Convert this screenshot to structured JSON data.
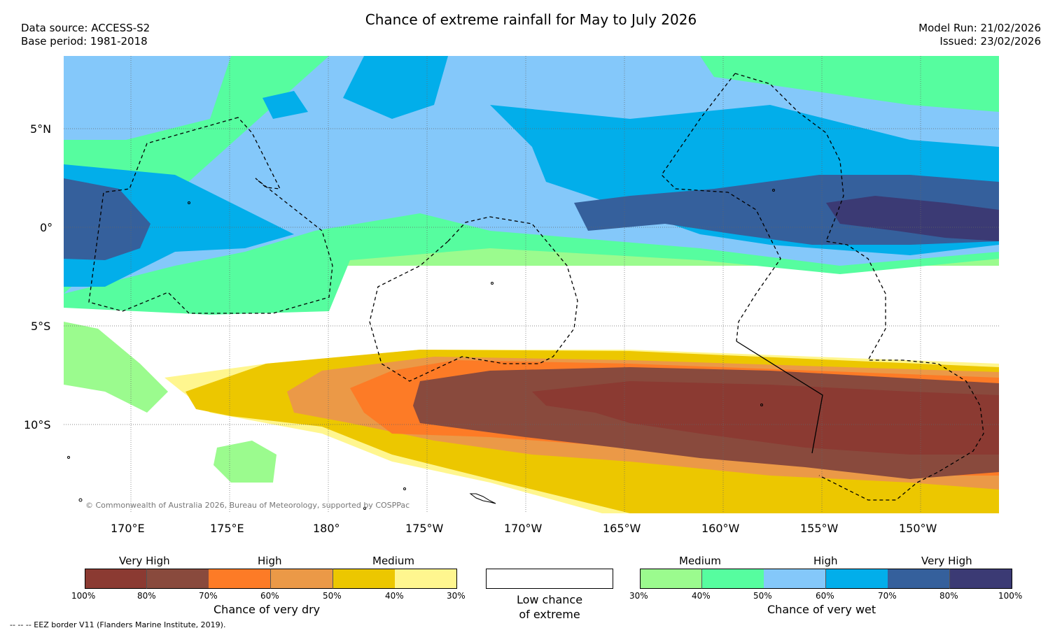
{
  "title": "Chance of extreme rainfall for May to July 2026",
  "header_left": {
    "data_source": "Data source: ACCESS-S2",
    "base_period": "Base period: 1981-2018"
  },
  "header_right": {
    "model_run": "Model Run: 21/02/2026",
    "issued": "Issued: 23/02/2026"
  },
  "map": {
    "lon_labels": [
      "170°E",
      "175°E",
      "180°",
      "175°W",
      "170°W",
      "165°W",
      "160°W",
      "155°W",
      "150°W"
    ],
    "lat_labels": [
      "5°N",
      "0°",
      "5°S",
      "10°S"
    ],
    "copyright": "© Commonwealth of Australia 2026, Bureau of Meteorology, supported by COSPPac"
  },
  "legend_dry": {
    "categories": [
      "Very High",
      "High",
      "Medium"
    ],
    "ticks": [
      "100%",
      "80%",
      "70%",
      "60%",
      "50%",
      "40%",
      "30%"
    ],
    "title": "Chance of very dry",
    "colors": [
      "#8b3a32",
      "#894a3d",
      "#fd7b26",
      "#eb9947",
      "#ecc700",
      "#fff68f"
    ]
  },
  "legend_none": {
    "caption_line1": "Low chance",
    "caption_line2": "of extreme"
  },
  "legend_wet": {
    "categories": [
      "Medium",
      "High",
      "Very High"
    ],
    "ticks": [
      "30%",
      "40%",
      "50%",
      "60%",
      "70%",
      "80%",
      "100%"
    ],
    "title": "Chance of very wet",
    "colors": [
      "#9bfb8e",
      "#56fd9f",
      "#84c8fa",
      "#02aeea",
      "#35609c",
      "#3b3a74"
    ]
  },
  "footnote": "-- -- -- EEZ border V11 (Flanders Marine Institute, 2019)."
}
